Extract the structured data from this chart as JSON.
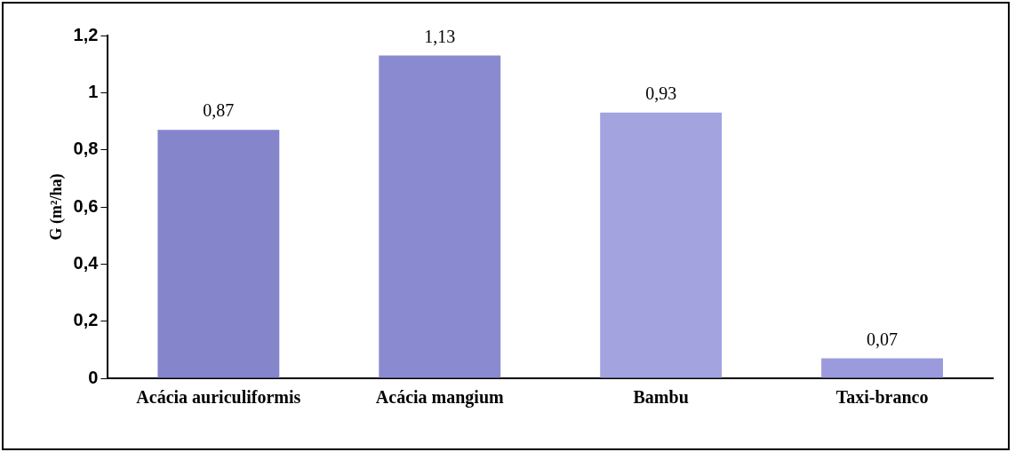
{
  "chart_data": {
    "type": "bar",
    "ylabel": "G (m²/ha)",
    "categories": [
      "Acácia auriculiformis",
      "Acácia mangium",
      "Bambu",
      "Taxi-branco"
    ],
    "values": [
      0.87,
      1.13,
      0.93,
      0.07
    ],
    "colors": [
      "#8585cc",
      "#8a8ad0",
      "#a3a3e0",
      "#9a9adc"
    ],
    "ylim": [
      0,
      1.2
    ],
    "yticks": [
      0,
      {
        "value": 0.2,
        "label": "0,2"
      },
      {
        "value": 0.4,
        "label": "0,4"
      },
      {
        "value": 0.6,
        "label": "0,6"
      },
      {
        "value": 0.8,
        "label": "0,8"
      },
      1,
      {
        "value": 1.2,
        "label": "1,2"
      }
    ],
    "value_labels": [
      "0,87",
      "1,13",
      "0,93",
      "0,07"
    ],
    "grid": false,
    "legend": false
  }
}
